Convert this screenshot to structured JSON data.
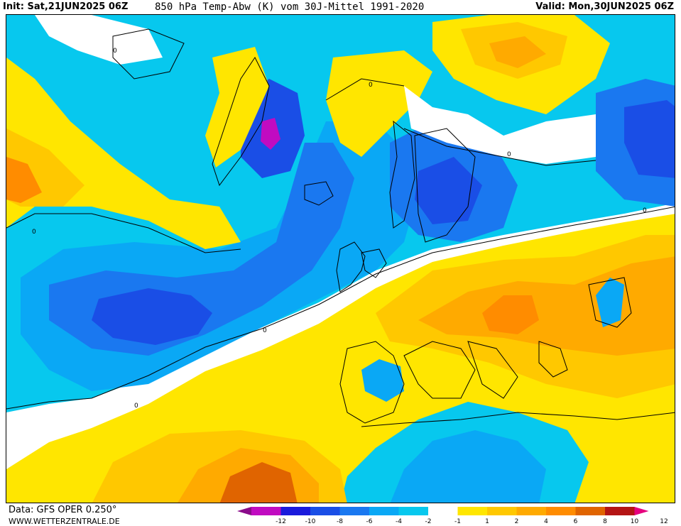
{
  "header": {
    "init_label": "Init:",
    "init_value": "Sat,21JUN2025 06Z",
    "title": "850 hPa Temp-Abw (K) vom 30J-Mittel 1991-2020",
    "valid_label": "Valid:",
    "valid_value": "Mon,30JUN2025 06Z"
  },
  "footer": {
    "source": "Data: GFS OPER 0.250°",
    "site": "WWW.WETTERZENTRALE.DE"
  },
  "legend": {
    "ticks": [
      "-12",
      "-10",
      "-8",
      "-6",
      "-4",
      "-2",
      "-1",
      "1",
      "2",
      "4",
      "6",
      "8",
      "10",
      "12"
    ],
    "colors": [
      "#8a0b8a",
      "#c10bc1",
      "#1a1adc",
      "#1a4ee6",
      "#1a78f0",
      "#0aa8f5",
      "#07c8ee",
      "#ffffff",
      "#ffe600",
      "#ffc800",
      "#ffaa00",
      "#ff8c00",
      "#e06400",
      "#b41414",
      "#e6007e"
    ]
  },
  "map_labels": {
    "contour_zero": "0"
  },
  "colors": {
    "cold_1": "#07c8ee",
    "cold_2": "#0aa8f5",
    "cold_4": "#1a78f0",
    "cold_6": "#1a4ee6",
    "cold_8": "#1a1adc",
    "cold_10": "#c10bc1",
    "neutral": "#ffffff",
    "warm_1": "#ffe600",
    "warm_2": "#ffc800",
    "warm_4": "#ffaa00",
    "warm_6": "#ff8c00",
    "warm_8": "#e06400"
  }
}
